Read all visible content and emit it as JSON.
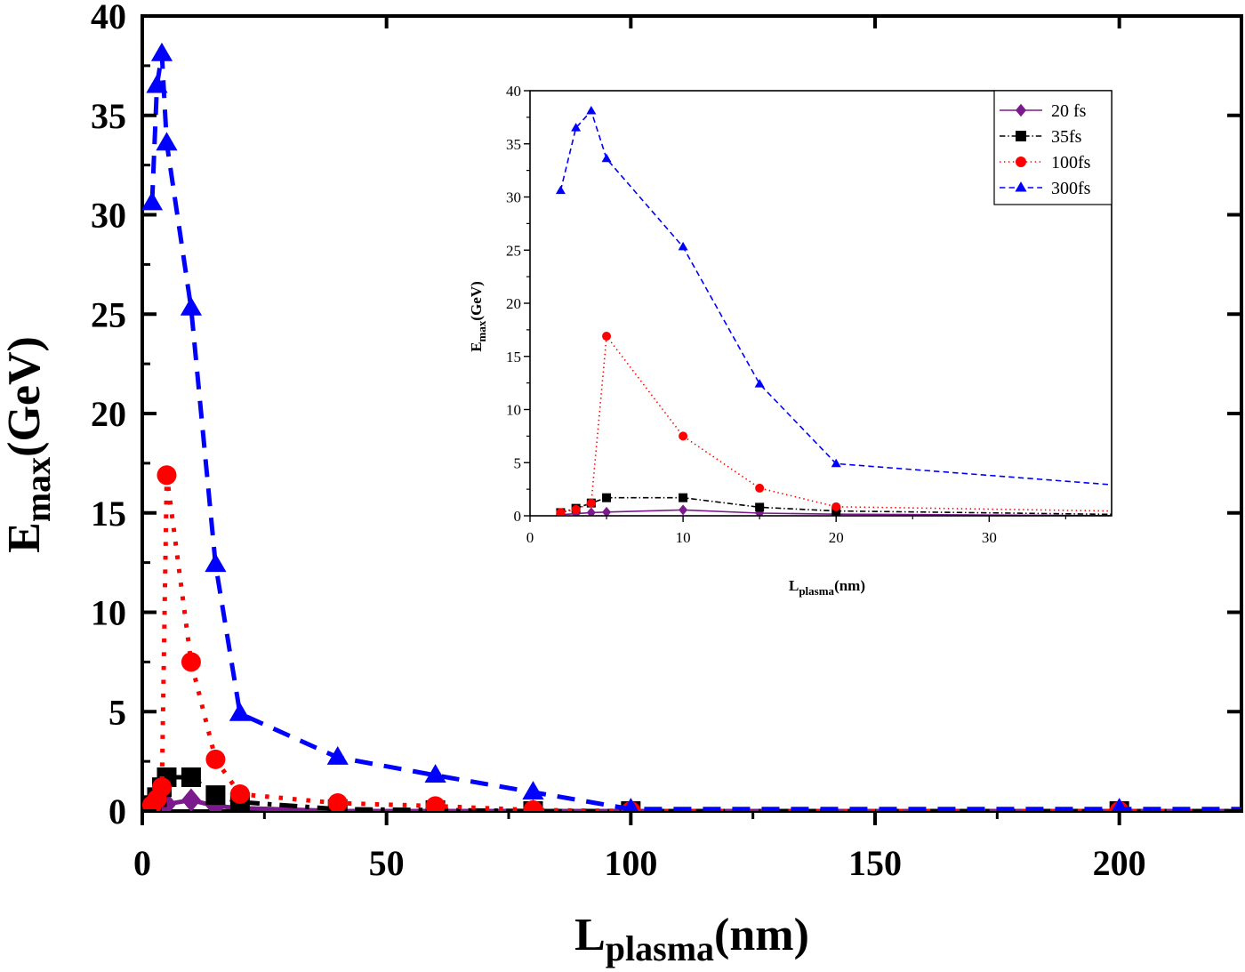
{
  "chart_data": [
    {
      "type": "line",
      "role": "main",
      "xlabel": "L",
      "xlabel_sub": "plasma",
      "xlabel_suffix": "(nm)",
      "ylabel": "E",
      "ylabel_sub": "max",
      "ylabel_suffix": "(GeV)",
      "xlim": [
        0,
        225
      ],
      "ylim": [
        0,
        40
      ],
      "xticks": [
        0,
        50,
        100,
        150,
        200
      ],
      "yticks": [
        0,
        5,
        10,
        15,
        20,
        25,
        30,
        35,
        40
      ],
      "xtick_labels": [
        "0",
        "50",
        "100",
        "150",
        "200"
      ],
      "ytick_labels": [
        "0",
        "5",
        "10",
        "15",
        "20",
        "25",
        "30",
        "35",
        "40"
      ],
      "line_extends_to_x": 225,
      "series": [
        {
          "name": "20 fs",
          "color": "#7b1a8c",
          "dash": "solid",
          "marker": "diamond",
          "x": [
            2,
            3,
            4,
            5,
            10,
            15,
            20,
            40,
            60,
            80,
            100,
            200
          ],
          "y": [
            0.1,
            0.2,
            0.3,
            0.35,
            0.55,
            0.25,
            0.15,
            0.0,
            0.0,
            0.0,
            0.0,
            0.0
          ]
        },
        {
          "name": "35fs",
          "color": "#000000",
          "dash": "dashdot",
          "marker": "square",
          "x": [
            2,
            3,
            4,
            5,
            10,
            15,
            20,
            40,
            60,
            80,
            100,
            200
          ],
          "y": [
            0.3,
            0.7,
            1.2,
            1.7,
            1.7,
            0.8,
            0.45,
            0.1,
            0.05,
            0.0,
            0.0,
            0.0
          ]
        },
        {
          "name": "100fs",
          "color": "#ff0000",
          "dash": "dotted",
          "marker": "circle",
          "x": [
            2,
            3,
            4,
            5,
            10,
            15,
            20,
            40,
            60,
            80,
            100,
            200
          ],
          "y": [
            0.3,
            0.6,
            1.2,
            16.9,
            7.5,
            2.6,
            0.85,
            0.4,
            0.25,
            0.05,
            0.0,
            0.0
          ]
        },
        {
          "name": "300fs",
          "color": "#0000ff",
          "dash": "dashed",
          "marker": "triangle",
          "x": [
            2,
            3,
            4,
            5,
            10,
            15,
            20,
            40,
            60,
            80,
            100,
            200
          ],
          "y": [
            30.6,
            36.5,
            38.1,
            33.6,
            25.3,
            12.4,
            4.9,
            2.7,
            1.8,
            0.95,
            0.1,
            0.1
          ]
        }
      ]
    },
    {
      "type": "line",
      "role": "inset",
      "xlabel": "L",
      "xlabel_sub": "plasma",
      "xlabel_suffix": "(nm)",
      "ylabel": "E",
      "ylabel_sub": "max",
      "ylabel_suffix": "(GeV)",
      "xlim": [
        0,
        38
      ],
      "ylim": [
        0,
        40
      ],
      "xticks": [
        0,
        10,
        20,
        30
      ],
      "yticks": [
        0,
        5,
        10,
        15,
        20,
        25,
        30,
        35,
        40
      ],
      "xtick_labels": [
        "0",
        "10",
        "20",
        "30"
      ],
      "ytick_labels": [
        "0",
        "5",
        "10",
        "15",
        "20",
        "25",
        "30",
        "35",
        "40"
      ],
      "legend": [
        "20 fs",
        "35fs",
        "100fs",
        "300fs"
      ],
      "legend_position": "top-right"
    }
  ]
}
